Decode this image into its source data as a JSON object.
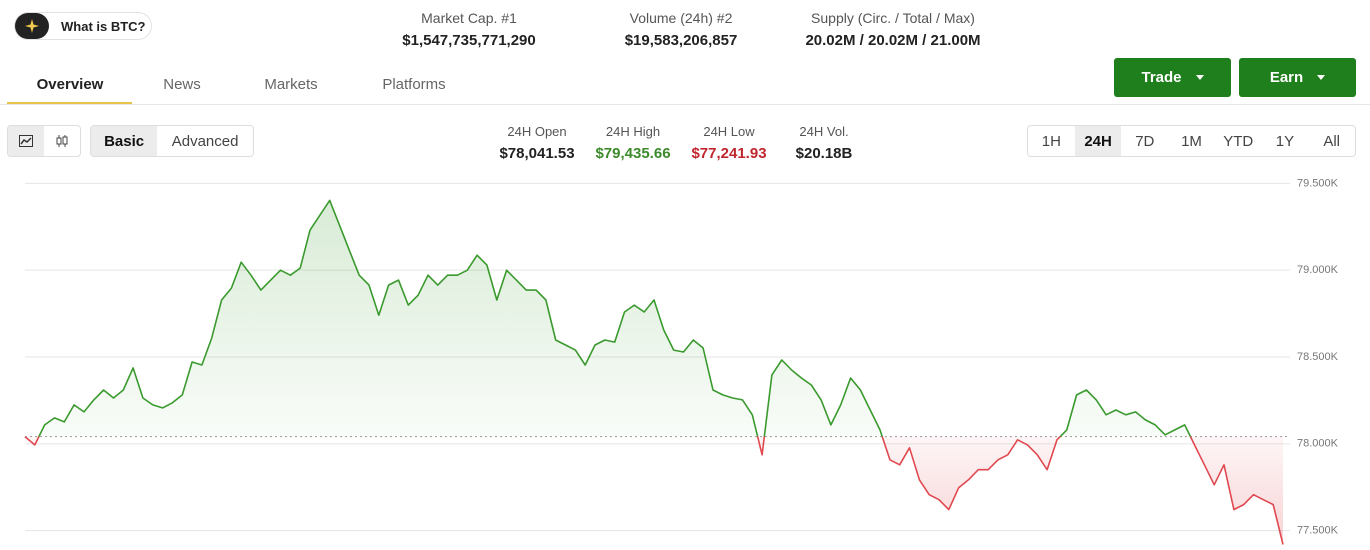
{
  "header": {
    "pill": "What is BTC?",
    "stats": [
      {
        "label": "Market Cap. #1",
        "value": "$1,547,735,771,290"
      },
      {
        "label": "Volume (24h) #2",
        "value": "$19,583,206,857"
      },
      {
        "label": "Supply (Circ. / Total / Max)",
        "value": "20.02M / 20.02M / 21.00M"
      }
    ]
  },
  "tabs": [
    "Overview",
    "News",
    "Markets",
    "Platforms"
  ],
  "buttons": [
    "Trade",
    "Earn"
  ],
  "view_modes": [
    "Basic",
    "Advanced"
  ],
  "day_stats": [
    {
      "label": "24H Open",
      "value": "$78,041.53"
    },
    {
      "label": "24H High",
      "value": "$79,435.66"
    },
    {
      "label": "24H Low",
      "value": "$77,241.93"
    },
    {
      "label": "24H Vol.",
      "value": "$20.18B"
    }
  ],
  "ranges": [
    "1H",
    "24H",
    "7D",
    "1M",
    "YTD",
    "1Y",
    "All"
  ],
  "chart_data": {
    "type": "line",
    "baseline": 78041.53,
    "up_color": "#3a9a2e",
    "down_color": "#e0484f",
    "ylim": [
      77400,
      79600
    ],
    "yticks": [
      {
        "value": 77500,
        "label": "77.500K"
      },
      {
        "value": 78000,
        "label": "78.000K"
      },
      {
        "value": 78500,
        "label": "78.500K"
      },
      {
        "value": 79000,
        "label": "79.000K"
      },
      {
        "value": 79500,
        "label": "79.500K"
      }
    ],
    "grid": true,
    "values": [
      78041,
      77994,
      78109,
      78149,
      78126,
      78224,
      78184,
      78253,
      78310,
      78264,
      78310,
      78437,
      78264,
      78224,
      78207,
      78236,
      78282,
      78471,
      78454,
      78609,
      78828,
      78897,
      79046,
      78971,
      78885,
      78943,
      79000,
      78971,
      79012,
      79230,
      79316,
      79402,
      79259,
      79115,
      78971,
      78914,
      78741,
      78914,
      78943,
      78799,
      78856,
      78971,
      78914,
      78971,
      78971,
      79000,
      79086,
      79029,
      78828,
      79000,
      78943,
      78885,
      78885,
      78828,
      78598,
      78569,
      78540,
      78454,
      78569,
      78598,
      78586,
      78759,
      78799,
      78759,
      78828,
      78655,
      78540,
      78529,
      78598,
      78552,
      78310,
      78282,
      78264,
      78253,
      78167,
      77937,
      78397,
      78483,
      78425,
      78379,
      78339,
      78253,
      78109,
      78224,
      78379,
      78310,
      78195,
      78080,
      77908,
      77879,
      77977,
      77793,
      77707,
      77678,
      77621,
      77747,
      77793,
      77851,
      77851,
      77908,
      77937,
      78023,
      77994,
      77937,
      77851,
      78023,
      78080,
      78282,
      78310,
      78253,
      78167,
      78195,
      78167,
      78184,
      78138,
      78109,
      78052,
      78080,
      78109,
      77994,
      77879,
      77764,
      77879,
      77621,
      77650,
      77707,
      77678,
      77650,
      77420
    ]
  }
}
